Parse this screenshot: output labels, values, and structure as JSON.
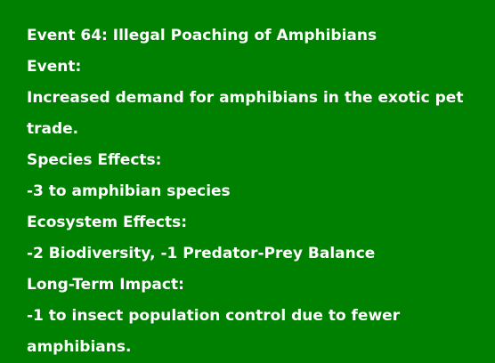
{
  "card": {
    "background": "#008000",
    "text_color": "#ffffff",
    "title": "Event 64: Illegal Poaching of Amphibians",
    "event_label": "Event:",
    "event_text": "Increased demand for amphibians in the exotic pet trade.",
    "species_label": "Species Effects:",
    "species_text": "-3 to amphibian species",
    "ecosystem_label": "Ecosystem Effects:",
    "ecosystem_text": "-2 Biodiversity, -1 Predator-Prey Balance",
    "longterm_label": "Long-Term Impact:",
    "longterm_text": "-1 to insect population control due to fewer amphibians."
  }
}
